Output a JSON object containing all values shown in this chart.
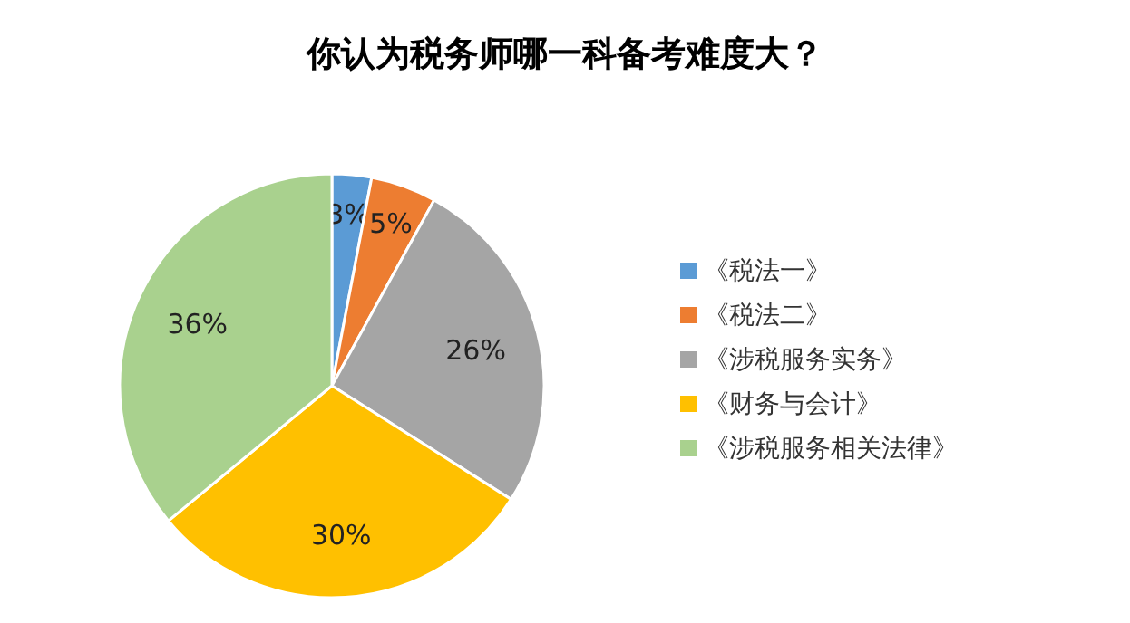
{
  "chart_data": {
    "type": "pie",
    "title": "你认为税务师哪一科备考难度大？",
    "categories": [
      "《税法一》",
      "《税法二》",
      "《涉税服务实务》",
      "《财务与会计》",
      "《涉税服务相关法律》"
    ],
    "values": [
      3,
      5,
      26,
      30,
      36
    ],
    "value_labels": [
      "3%",
      "5%",
      "26%",
      "30%",
      "36%"
    ],
    "colors": [
      "#5b9bd5",
      "#ed7d31",
      "#a5a5a5",
      "#ffc000",
      "#a9d18e"
    ],
    "legend": "right"
  }
}
